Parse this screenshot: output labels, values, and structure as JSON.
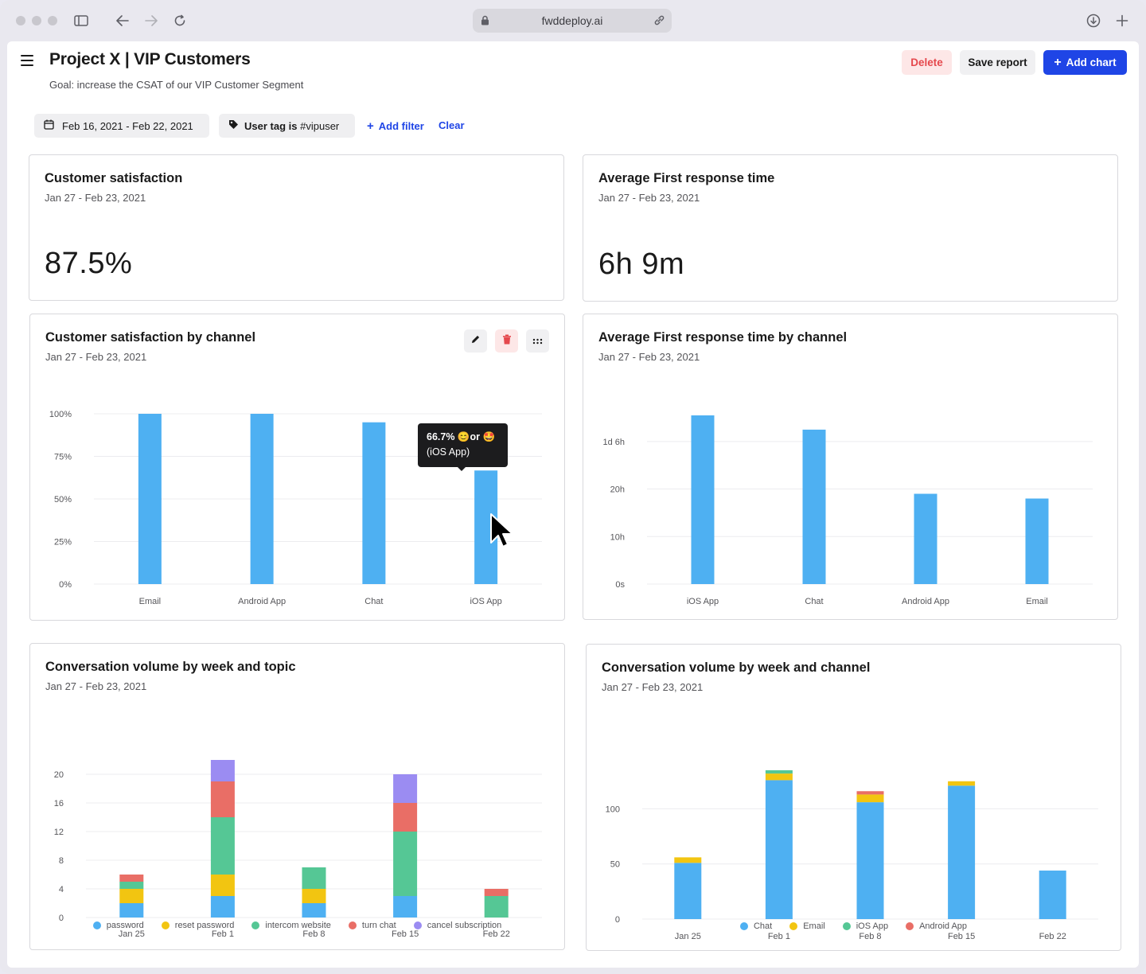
{
  "browser": {
    "url": "fwddeploy.ai"
  },
  "header": {
    "title": "Project X | VIP Customers",
    "goal": "Goal: increase the CSAT of our VIP Customer Segment",
    "delete_label": "Delete",
    "save_label": "Save report",
    "add_chart_label": "Add chart"
  },
  "filters": {
    "date_range": "Feb 16, 2021 - Feb 22, 2021",
    "tag_prefix": "User tag is",
    "tag_value": "#vipuser",
    "add_filter_label": "Add filter",
    "clear_label": "Clear"
  },
  "colors": {
    "accent": "#1f45e6",
    "bar_blue": "#4eb0f2",
    "yellow": "#f2c511",
    "green": "#55c795",
    "red": "#e96e66",
    "purple": "#9b8cf2"
  },
  "cards": {
    "csat": {
      "title": "Customer satisfaction",
      "date": "Jan 27 - Feb 23, 2021",
      "value": "87.5%"
    },
    "frt": {
      "title": "Average First response time",
      "date": "Jan 27 - Feb 23, 2021",
      "value": "6h 9m"
    },
    "csat_channel": {
      "title": "Customer satisfaction by channel",
      "date": "Jan 27 - Feb 23, 2021",
      "tooltip_line1": "66.7% 😊or 🤩",
      "tooltip_line2": "(iOS App)"
    },
    "frt_channel": {
      "title": "Average First response time by channel",
      "date": "Jan 27 - Feb 23, 2021"
    },
    "volume_topic": {
      "title": "Conversation volume by week and topic",
      "date": "Jan 27 - Feb 23, 2021"
    },
    "volume_channel": {
      "title": "Conversation volume by week and channel",
      "date": "Jan 27 - Feb 23, 2021"
    }
  },
  "chart_data": [
    {
      "type": "bar",
      "title": "Customer satisfaction by channel",
      "categories": [
        "Email",
        "Android App",
        "Chat",
        "iOS App"
      ],
      "values": [
        100,
        100,
        95,
        66.7
      ],
      "yticks": [
        "0%",
        "25%",
        "50%",
        "75%",
        "100%"
      ],
      "ylim": [
        0,
        100
      ],
      "grid": true
    },
    {
      "type": "bar",
      "title": "Average First response time by channel",
      "categories": [
        "iOS App",
        "Chat",
        "Android App",
        "Email"
      ],
      "values": [
        35.5,
        32.5,
        19,
        18
      ],
      "value_unit": "hours",
      "yticks": [
        "0s",
        "10h",
        "20h",
        "1d 6h"
      ],
      "ytick_values": [
        0,
        10,
        20,
        30
      ],
      "ylim": [
        0,
        36
      ],
      "grid": true
    },
    {
      "type": "bar",
      "stacked": true,
      "title": "Conversation volume by week and topic",
      "categories": [
        "Jan 25",
        "Feb 1",
        "Feb 8",
        "Feb 15",
        "Feb 22"
      ],
      "series": [
        {
          "name": "password",
          "color": "#4eb0f2",
          "values": [
            2,
            3,
            2,
            3,
            0
          ]
        },
        {
          "name": "reset password",
          "color": "#f2c511",
          "values": [
            2,
            3,
            2,
            0,
            0
          ]
        },
        {
          "name": "intercom website",
          "color": "#55c795",
          "values": [
            1,
            8,
            3,
            9,
            3
          ]
        },
        {
          "name": "turn chat",
          "color": "#e96e66",
          "values": [
            1,
            5,
            0,
            4,
            1
          ]
        },
        {
          "name": "cancel subscription",
          "color": "#9b8cf2",
          "values": [
            0,
            3,
            0,
            4,
            0
          ]
        }
      ],
      "yticks": [
        0,
        4,
        8,
        12,
        16,
        20
      ],
      "ylim": [
        0,
        22
      ],
      "legend": "bottom",
      "grid": true
    },
    {
      "type": "bar",
      "stacked": true,
      "title": "Conversation volume by week and channel",
      "categories": [
        "Jan 25",
        "Feb 1",
        "Feb 8",
        "Feb 15",
        "Feb 22"
      ],
      "series": [
        {
          "name": "Chat",
          "color": "#4eb0f2",
          "values": [
            51,
            126,
            106,
            121,
            44
          ]
        },
        {
          "name": "Email",
          "color": "#f2c511",
          "values": [
            5,
            6,
            7,
            4,
            0
          ]
        },
        {
          "name": "iOS App",
          "color": "#55c795",
          "values": [
            0,
            3,
            0,
            0,
            0
          ]
        },
        {
          "name": "Android App",
          "color": "#e96e66",
          "values": [
            0,
            0,
            3,
            0,
            0
          ]
        }
      ],
      "yticks": [
        0,
        50,
        100
      ],
      "ylim": [
        0,
        140
      ],
      "legend": "bottom",
      "grid": true
    }
  ]
}
